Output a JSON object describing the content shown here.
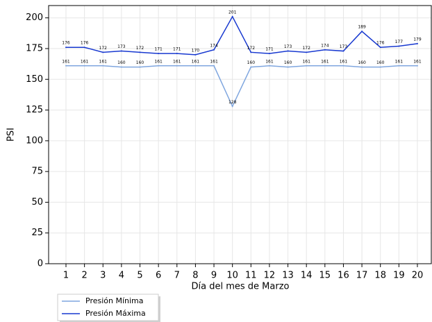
{
  "chart_data": {
    "type": "line",
    "x_label": "Día del mes de  Marzo",
    "y_label": "PSI",
    "categories": [
      "1",
      "2",
      "3",
      "4",
      "5",
      "6",
      "7",
      "8",
      "9",
      "10",
      "11",
      "12",
      "13",
      "14",
      "15",
      "16",
      "17",
      "18",
      "19",
      "20"
    ],
    "series": [
      {
        "name": "Presión Mínima",
        "color": "#7fa6df",
        "values": [
          161,
          161,
          161,
          160,
          160,
          161,
          161,
          161,
          161,
          128,
          160,
          161,
          160,
          161,
          161,
          161,
          160,
          160,
          161,
          161
        ]
      },
      {
        "name": "Presión Máxima",
        "color": "#1738d0",
        "values": [
          176,
          176,
          172,
          173,
          172,
          171,
          171,
          170,
          174,
          201,
          172,
          171,
          173,
          172,
          174,
          173,
          189,
          176,
          177,
          179
        ]
      }
    ],
    "ylim": [
      0,
      210
    ],
    "yticks": [
      0,
      25,
      50,
      75,
      100,
      125,
      150,
      175,
      200
    ],
    "grid": true,
    "legend": "below-left"
  }
}
